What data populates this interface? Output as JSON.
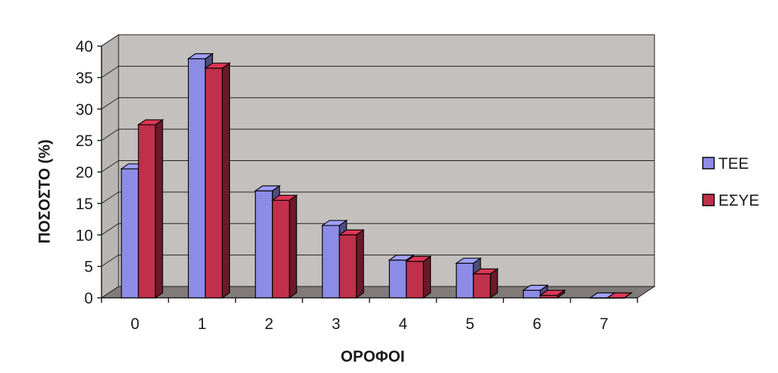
{
  "chart_data": {
    "type": "bar",
    "categories": [
      "0",
      "1",
      "2",
      "3",
      "4",
      "5",
      "6",
      "7"
    ],
    "series": [
      {
        "name": "ΤΕΕ",
        "values": [
          20.5,
          38.0,
          17.0,
          11.5,
          6.0,
          5.5,
          1.2,
          0.0
        ],
        "color": "#8c8ce6"
      },
      {
        "name": "ΕΣΥΕ",
        "values": [
          27.5,
          36.5,
          15.5,
          10.0,
          5.8,
          3.8,
          0.4,
          0.0
        ],
        "color": "#c0304a"
      }
    ],
    "xlabel": "ΟΡΟΦΟΙ",
    "ylabel": "ΠΟΣΟΣΤΟ (%)",
    "ylim": [
      0,
      40
    ],
    "yticks": [
      "0",
      "5",
      "10",
      "15",
      "20",
      "25",
      "30",
      "35",
      "40"
    ],
    "grid": true,
    "legend": "right",
    "colors": {
      "wall": "#c3c0bd",
      "floor": "#807b78",
      "grid": "#1a1a1a"
    }
  }
}
